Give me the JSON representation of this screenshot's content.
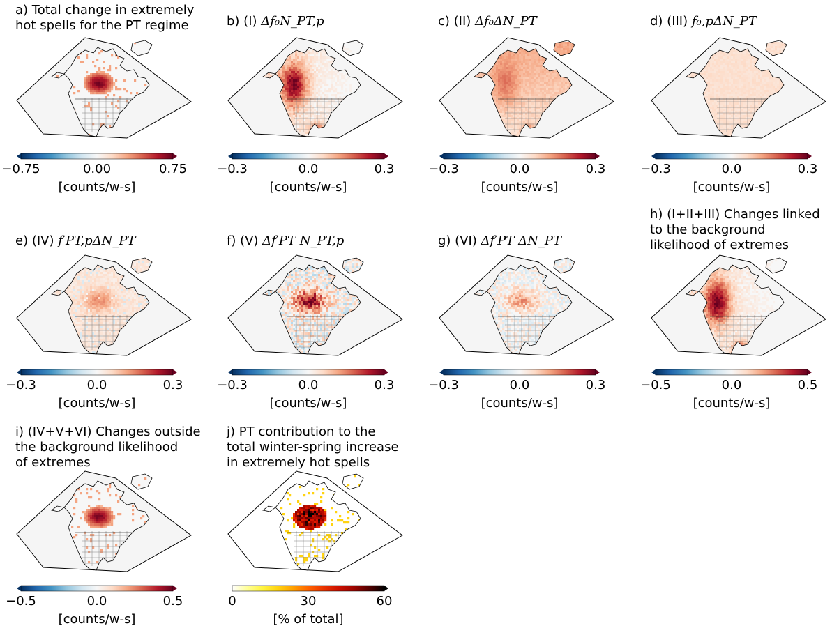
{
  "panels": [
    {
      "id": "a",
      "title": "a) Total change in extremely\nhot spells for the PT regime",
      "title_math": "",
      "pattern": "blob-nw",
      "cbar": {
        "cmap": "RdBu_r",
        "ticks": [
          "−0.75",
          "0.00",
          "0.75"
        ],
        "unit": "[counts/w-s]"
      }
    },
    {
      "id": "b",
      "title": "b) (I) ",
      "title_math": "Δf₀N_PT,p",
      "pattern": "west-strong",
      "cbar": {
        "cmap": "RdBu_r",
        "ticks": [
          "−0.3",
          "0.0",
          "0.3"
        ],
        "unit": "[counts/w-s]"
      }
    },
    {
      "id": "c",
      "title": "c) (II) ",
      "title_math": "Δf₀ΔN_PT",
      "pattern": "mild-broad",
      "cbar": {
        "cmap": "RdBu_r",
        "ticks": [
          "−0.3",
          "0.0",
          "0.3"
        ],
        "unit": "[counts/w-s]"
      }
    },
    {
      "id": "d",
      "title": "d) (III) ",
      "title_math": "f₀,pΔN_PT",
      "pattern": "faint",
      "cbar": {
        "cmap": "RdBu_r",
        "ticks": [
          "−0.3",
          "0.0",
          "0.3"
        ],
        "unit": "[counts/w-s]"
      }
    },
    {
      "id": "e",
      "title": "e) (IV) ",
      "title_math": "f′PT,pΔN_PT",
      "pattern": "mild-north",
      "cbar": {
        "cmap": "RdBu_r",
        "ticks": [
          "−0.3",
          "0.0",
          "0.3"
        ],
        "unit": "[counts/w-s]"
      }
    },
    {
      "id": "f",
      "title": "f) (V) ",
      "title_math": "Δf′PT N_PT,p",
      "pattern": "mixed-strong",
      "cbar": {
        "cmap": "RdBu_r",
        "ticks": [
          "−0.3",
          "0.0",
          "0.3"
        ],
        "unit": "[counts/w-s]"
      }
    },
    {
      "id": "g",
      "title": "g) (VI) ",
      "title_math": "Δf′PT ΔN_PT",
      "pattern": "mixed-mild",
      "cbar": {
        "cmap": "RdBu_r",
        "ticks": [
          "−0.3",
          "0.0",
          "0.3"
        ],
        "unit": "[counts/w-s]"
      }
    },
    {
      "id": "h",
      "title": "h) (I+II+III) Changes linked\nto the background\nlikelihood of extremes",
      "title_math": "",
      "pattern": "west-strong",
      "cbar": {
        "cmap": "RdBu_r",
        "ticks": [
          "−0.5",
          "0.0",
          "0.5"
        ],
        "unit": "[counts/w-s]"
      }
    },
    {
      "id": "i",
      "title": "i) (IV+V+VI) Changes outside\nthe background likelihood\nof extremes",
      "title_math": "",
      "pattern": "blob-nw",
      "cbar": {
        "cmap": "RdBu_r",
        "ticks": [
          "−0.5",
          "0.0",
          "0.5"
        ],
        "unit": "[counts/w-s]"
      }
    },
    {
      "id": "j",
      "title": "j) PT contribution to the\ntotal winter-spring increase\nin extremely hot spells",
      "title_math": "",
      "pattern": "hot",
      "cbar": {
        "cmap": "hot_r",
        "ticks": [
          "0",
          "30",
          "60"
        ],
        "unit": "[% of total]"
      }
    }
  ],
  "colors": {
    "map_outline": "#000000",
    "ocean": "#f5f5f5",
    "coast": "#000000",
    "borders": "#808080"
  }
}
